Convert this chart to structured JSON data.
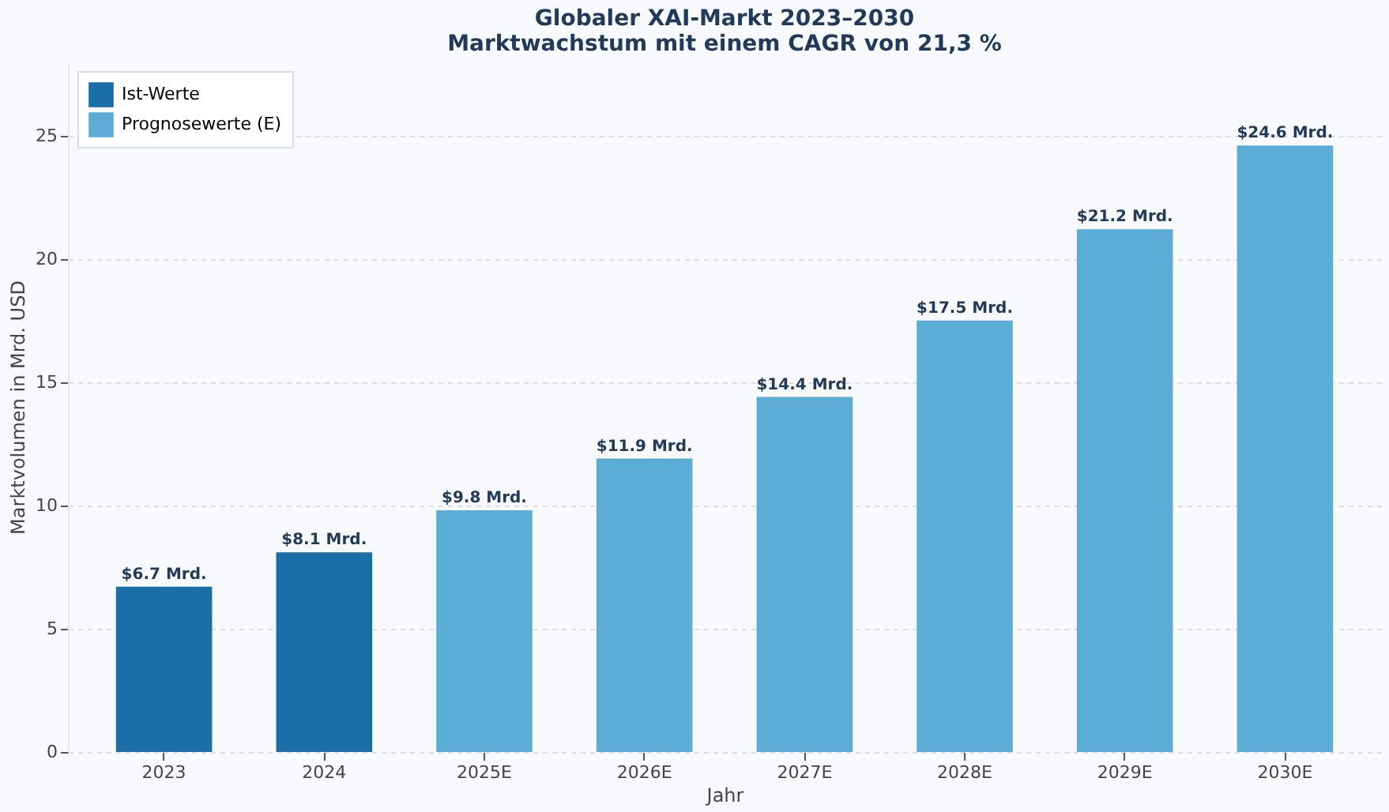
{
  "chart_data": {
    "type": "bar",
    "title": "Globaler XAI-Markt 2023–2030",
    "subtitle": "Marktwachstum mit einem CAGR von 21,3 %",
    "xlabel": "Jahr",
    "ylabel": "Marktvolumen in Mrd. USD",
    "categories": [
      "2023",
      "2024",
      "2025E",
      "2026E",
      "2027E",
      "2028E",
      "2029E",
      "2030E"
    ],
    "series": [
      {
        "name": "Ist-Werte",
        "color": "#1a6fa8",
        "values": [
          6.7,
          8.1,
          null,
          null,
          null,
          null,
          null,
          null
        ],
        "value_labels": [
          "$6.7 Mrd.",
          "$8.1 Mrd.",
          null,
          null,
          null,
          null,
          null,
          null
        ]
      },
      {
        "name": "Prognosewerte (E)",
        "color": "#5badd6",
        "values": [
          null,
          null,
          9.8,
          11.9,
          14.4,
          17.5,
          21.2,
          24.6
        ],
        "value_labels": [
          null,
          null,
          "$9.8 Mrd.",
          "$11.9 Mrd.",
          "$14.4 Mrd.",
          "$17.5 Mrd.",
          "$21.2 Mrd.",
          "$24.6 Mrd."
        ]
      }
    ],
    "ylim": [
      0,
      28
    ],
    "yticks": [
      0,
      5,
      10,
      15,
      20,
      25
    ],
    "grid": "y",
    "legend": "top left"
  }
}
